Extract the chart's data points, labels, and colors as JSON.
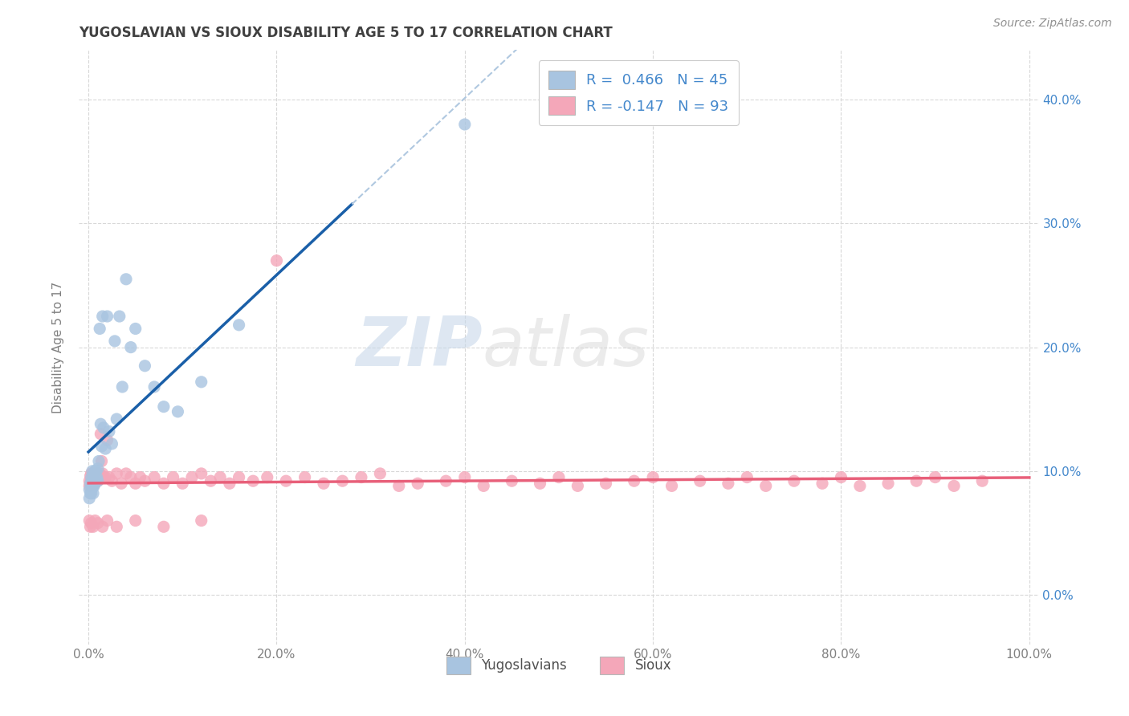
{
  "title": "YUGOSLAVIAN VS SIOUX DISABILITY AGE 5 TO 17 CORRELATION CHART",
  "source": "Source: ZipAtlas.com",
  "ylabel": "Disability Age 5 to 17",
  "xlim": [
    -0.01,
    1.01
  ],
  "ylim": [
    -0.04,
    0.44
  ],
  "yticks": [
    0.0,
    0.1,
    0.2,
    0.3,
    0.4
  ],
  "xticks": [
    0.0,
    0.2,
    0.4,
    0.6,
    0.8,
    1.0
  ],
  "xtick_labels": [
    "0.0%",
    "20.0%",
    "40.0%",
    "60.0%",
    "80.0%",
    "100.0%"
  ],
  "ytick_labels_right": [
    "0.0%",
    "10.0%",
    "20.0%",
    "30.0%",
    "40.0%"
  ],
  "legend_labels": [
    "Yugoslavians",
    "Sioux"
  ],
  "r_yugoslavian": 0.466,
  "n_yugoslavian": 45,
  "r_sioux": -0.147,
  "n_sioux": 93,
  "color_yugoslavian": "#a8c4e0",
  "color_sioux": "#f4a7b9",
  "line_color_yugoslavian": "#1a5fa8",
  "line_color_sioux": "#e8607a",
  "line_color_yugoslavian_dashed": "#b0c8e0",
  "watermark_zip": "ZIP",
  "watermark_atlas": "atlas",
  "background_color": "#ffffff",
  "grid_color": "#d8d8d8",
  "title_color": "#404040",
  "axis_label_color": "#808080",
  "right_ytick_color": "#4488cc",
  "legend_text_color": "#4488cc",
  "yug_x": [
    0.001,
    0.001,
    0.002,
    0.002,
    0.003,
    0.003,
    0.003,
    0.004,
    0.004,
    0.004,
    0.005,
    0.005,
    0.005,
    0.006,
    0.006,
    0.007,
    0.007,
    0.008,
    0.009,
    0.01,
    0.01,
    0.011,
    0.012,
    0.013,
    0.014,
    0.015,
    0.016,
    0.018,
    0.02,
    0.022,
    0.025,
    0.028,
    0.03,
    0.033,
    0.036,
    0.04,
    0.045,
    0.05,
    0.06,
    0.07,
    0.08,
    0.095,
    0.12,
    0.16,
    0.4
  ],
  "yug_y": [
    0.085,
    0.078,
    0.082,
    0.09,
    0.095,
    0.088,
    0.082,
    0.1,
    0.092,
    0.086,
    0.095,
    0.088,
    0.082,
    0.098,
    0.088,
    0.1,
    0.092,
    0.1,
    0.095,
    0.102,
    0.092,
    0.108,
    0.215,
    0.138,
    0.12,
    0.225,
    0.135,
    0.118,
    0.225,
    0.132,
    0.122,
    0.205,
    0.142,
    0.225,
    0.168,
    0.255,
    0.2,
    0.215,
    0.185,
    0.168,
    0.152,
    0.148,
    0.172,
    0.218,
    0.38
  ],
  "sioux_x": [
    0.001,
    0.001,
    0.002,
    0.002,
    0.003,
    0.003,
    0.004,
    0.004,
    0.005,
    0.005,
    0.006,
    0.006,
    0.007,
    0.007,
    0.008,
    0.008,
    0.009,
    0.01,
    0.01,
    0.011,
    0.012,
    0.013,
    0.014,
    0.015,
    0.016,
    0.018,
    0.02,
    0.022,
    0.025,
    0.03,
    0.035,
    0.04,
    0.045,
    0.05,
    0.055,
    0.06,
    0.07,
    0.08,
    0.09,
    0.1,
    0.11,
    0.12,
    0.13,
    0.14,
    0.15,
    0.16,
    0.175,
    0.19,
    0.21,
    0.23,
    0.25,
    0.27,
    0.29,
    0.31,
    0.33,
    0.35,
    0.38,
    0.4,
    0.42,
    0.45,
    0.48,
    0.5,
    0.52,
    0.55,
    0.58,
    0.6,
    0.62,
    0.65,
    0.68,
    0.7,
    0.72,
    0.75,
    0.78,
    0.8,
    0.82,
    0.85,
    0.88,
    0.9,
    0.92,
    0.95,
    0.001,
    0.002,
    0.003,
    0.005,
    0.007,
    0.01,
    0.015,
    0.02,
    0.03,
    0.05,
    0.08,
    0.12,
    0.2
  ],
  "sioux_y": [
    0.092,
    0.088,
    0.096,
    0.09,
    0.098,
    0.092,
    0.096,
    0.09,
    0.098,
    0.092,
    0.096,
    0.09,
    0.096,
    0.09,
    0.098,
    0.092,
    0.096,
    0.098,
    0.092,
    0.098,
    0.098,
    0.13,
    0.108,
    0.098,
    0.095,
    0.095,
    0.125,
    0.095,
    0.092,
    0.098,
    0.09,
    0.098,
    0.095,
    0.09,
    0.095,
    0.092,
    0.095,
    0.09,
    0.095,
    0.09,
    0.095,
    0.098,
    0.092,
    0.095,
    0.09,
    0.095,
    0.092,
    0.095,
    0.092,
    0.095,
    0.09,
    0.092,
    0.095,
    0.098,
    0.088,
    0.09,
    0.092,
    0.095,
    0.088,
    0.092,
    0.09,
    0.095,
    0.088,
    0.09,
    0.092,
    0.095,
    0.088,
    0.092,
    0.09,
    0.095,
    0.088,
    0.092,
    0.09,
    0.095,
    0.088,
    0.09,
    0.092,
    0.095,
    0.088,
    0.092,
    0.06,
    0.055,
    0.058,
    0.055,
    0.06,
    0.058,
    0.055,
    0.06,
    0.055,
    0.06,
    0.055,
    0.06,
    0.27
  ]
}
